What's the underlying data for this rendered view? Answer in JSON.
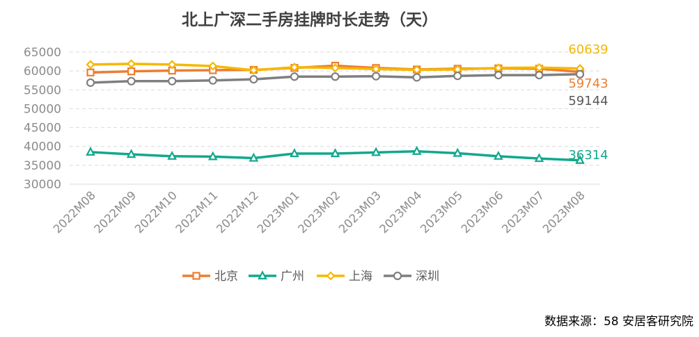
{
  "chart_data": {
    "type": "line",
    "title": "北上广深二手房挂牌时长走势（天）",
    "categories": [
      "2022M08",
      "2022M09",
      "2022M10",
      "2022M11",
      "2022M12",
      "2023M01",
      "2023M02",
      "2023M03",
      "2023M04",
      "2023M05",
      "2023M06",
      "2023M07",
      "2023M08"
    ],
    "ylim": [
      30000,
      65000
    ],
    "yticks": [
      30000,
      35000,
      40000,
      45000,
      50000,
      55000,
      60000,
      65000
    ],
    "grid": true,
    "legend_position": "bottom",
    "series": [
      {
        "name": "北京",
        "color": "#ED7D31",
        "marker": "square",
        "values": [
          59600,
          59900,
          60100,
          60200,
          60300,
          60800,
          61400,
          60800,
          60400,
          60600,
          60700,
          60600,
          59743
        ]
      },
      {
        "name": "广州",
        "color": "#12A88C",
        "marker": "triangle",
        "values": [
          38500,
          37900,
          37400,
          37300,
          36900,
          38100,
          38100,
          38400,
          38700,
          38200,
          37400,
          36800,
          36314
        ]
      },
      {
        "name": "上海",
        "color": "#F5B800",
        "marker": "diamond",
        "values": [
          61700,
          61900,
          61700,
          61300,
          60200,
          61000,
          60800,
          60500,
          60300,
          60400,
          60800,
          60900,
          60639
        ]
      },
      {
        "name": "深圳",
        "color": "#7F7F7F",
        "marker": "circle",
        "values": [
          56900,
          57300,
          57300,
          57500,
          57800,
          58500,
          58500,
          58600,
          58300,
          58700,
          58900,
          58900,
          59144
        ]
      }
    ],
    "end_labels": [
      {
        "series": "上海",
        "text": "60639"
      },
      {
        "series": "北京",
        "text": "59743"
      },
      {
        "series": "深圳",
        "text": "59144"
      },
      {
        "series": "广州",
        "text": "36314"
      }
    ]
  },
  "source_note": "数据来源：58 安居客研究院"
}
